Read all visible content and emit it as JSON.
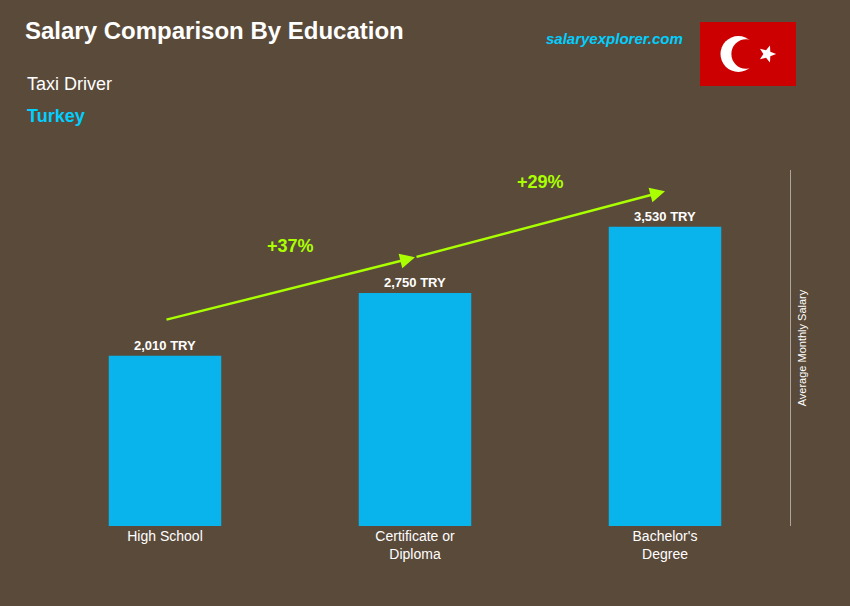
{
  "chart_data": {
    "type": "bar",
    "title": "Salary Comparison By Education",
    "subtitle": [
      "Taxi Driver",
      "Turkey"
    ],
    "watermark": "salaryexplorer.com",
    "ylabel": "Average Monthly Salary",
    "categories": [
      "High School",
      "Certificate or\nDiploma",
      "Bachelor's\nDegree"
    ],
    "values": [
      2010,
      2750,
      3530
    ],
    "value_labels": [
      "2,010 TRY",
      "2,750 TRY",
      "3,530 TRY"
    ],
    "data_labels": true,
    "annotations": [
      "+37%",
      "+29%"
    ],
    "color": "#00bfff",
    "ylim": [
      0,
      4200
    ],
    "tick_labels": "x",
    "grid": false
  }
}
